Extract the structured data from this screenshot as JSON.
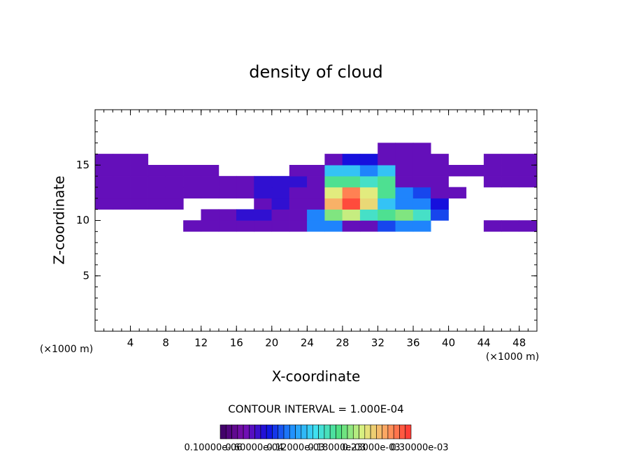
{
  "chart_data": {
    "type": "heatmap",
    "title": "density of cloud",
    "x_label": "X-coordinate",
    "y_label": "Z-coordinate",
    "x_unit": "(×1000 m)",
    "y_unit": "(×1000 m)",
    "contour_interval": "CONTOUR INTERVAL = 1.000E-04",
    "xlim": [
      0,
      50
    ],
    "ylim": [
      0,
      20
    ],
    "xticks": [
      4,
      8,
      12,
      16,
      20,
      24,
      28,
      32,
      36,
      40,
      44,
      48
    ],
    "yticks": [
      5,
      10,
      15
    ],
    "x": [
      1,
      3,
      5,
      7,
      9,
      11,
      13,
      15,
      17,
      19,
      21,
      23,
      25,
      27,
      29,
      31,
      33,
      35,
      37,
      39,
      41,
      43,
      45,
      47,
      49
    ],
    "z": [
      9.5,
      10.5,
      11.5,
      12.5,
      13.5,
      14.5,
      15.5,
      16.5
    ],
    "values": [
      [
        0,
        0,
        0,
        0,
        0,
        5e-05,
        5e-05,
        5e-05,
        5e-05,
        5e-05,
        5e-05,
        5e-05,
        0.00012,
        0.00012,
        5e-05,
        5e-05,
        0.0001,
        0.00012,
        0.00012,
        0,
        0,
        0,
        5e-05,
        5e-05,
        5e-05
      ],
      [
        0,
        0,
        0,
        0,
        0,
        0,
        5e-05,
        5e-05,
        7e-05,
        7e-05,
        5e-05,
        5e-05,
        0.00012,
        0.00022,
        0.00024,
        0.00018,
        0.0002,
        0.00022,
        0.00018,
        0.0001,
        0,
        0,
        0,
        0,
        0
      ],
      [
        5e-05,
        5e-05,
        5e-05,
        5e-05,
        5e-05,
        0,
        0,
        0,
        0,
        5e-05,
        7e-05,
        5e-05,
        5e-05,
        0.00028,
        0.00032,
        0.00026,
        0.00015,
        0.00012,
        0.00012,
        8e-05,
        0,
        0,
        0,
        0,
        0
      ],
      [
        5e-05,
        5e-05,
        5e-05,
        5e-05,
        5e-05,
        5e-05,
        5e-05,
        5e-05,
        5e-05,
        7e-05,
        7e-05,
        5e-05,
        5e-05,
        0.00025,
        0.0003,
        0.00025,
        0.0002,
        0.00012,
        0.0001,
        5e-05,
        5e-05,
        0,
        0,
        0,
        0
      ],
      [
        5e-05,
        5e-05,
        5e-05,
        5e-05,
        5e-05,
        5e-05,
        5e-05,
        5e-05,
        5e-05,
        7e-05,
        7e-05,
        7e-05,
        5e-05,
        0.0002,
        0.0002,
        0.00018,
        0.0002,
        5e-05,
        5e-05,
        5e-05,
        0,
        0,
        5e-05,
        5e-05,
        5e-05
      ],
      [
        5e-05,
        5e-05,
        5e-05,
        5e-05,
        5e-05,
        5e-05,
        5e-05,
        0,
        0,
        0,
        0,
        5e-05,
        5e-05,
        0.00015,
        0.00015,
        0.00012,
        0.00015,
        5e-05,
        5e-05,
        5e-05,
        5e-05,
        5e-05,
        5e-05,
        5e-05,
        5e-05
      ],
      [
        5e-05,
        5e-05,
        5e-05,
        0,
        0,
        0,
        0,
        0,
        0,
        0,
        0,
        0,
        0,
        5e-05,
        8e-05,
        8e-05,
        5e-05,
        5e-05,
        5e-05,
        5e-05,
        0,
        0,
        5e-05,
        5e-05,
        5e-05
      ],
      [
        0,
        0,
        0,
        0,
        0,
        0,
        0,
        0,
        0,
        0,
        0,
        0,
        0,
        0,
        0,
        0,
        5e-05,
        5e-05,
        5e-05,
        0,
        0,
        0,
        0,
        0,
        0
      ]
    ],
    "clim": [
      0,
      0.00033
    ],
    "colormap": [
      "#3a0060",
      "#7a0fb0",
      "#1010e0",
      "#2090ff",
      "#40e0f0",
      "#50e080",
      "#e0f080",
      "#ffa060",
      "#ff3030"
    ],
    "colorbar_ticks": [
      {
        "value": 1e-07,
        "label": "0.10000e-06"
      },
      {
        "value": 6e-05,
        "label": "0.60000e-04"
      },
      {
        "value": 0.00012,
        "label": "0.12000e-03"
      },
      {
        "value": 0.00018,
        "label": "0.18000e-03"
      },
      {
        "value": 0.00023,
        "label": "0.23000e-03"
      },
      {
        "value": 0.0003,
        "label": "0.30000e-03"
      }
    ]
  }
}
